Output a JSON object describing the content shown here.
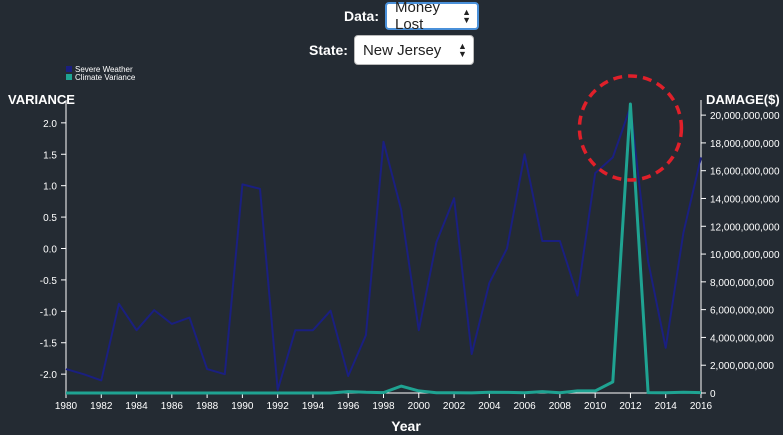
{
  "controls": {
    "data_label": "Data:",
    "data_value": "Money Lost",
    "state_label": "State:",
    "state_value": "New Jersey"
  },
  "colors": {
    "background": "#242b33",
    "severe_weather": "#1a1f80",
    "climate_variance": "#1fa392",
    "highlight": "#e0202a"
  },
  "chart_data": {
    "type": "line",
    "xlabel": "Year",
    "ylabel_left": "VARIANCE",
    "ylabel_right": "DAMAGE($)",
    "x_ticks": [
      "1980",
      "1982",
      "1984",
      "1986",
      "1988",
      "1990",
      "1992",
      "1994",
      "1996",
      "1998",
      "2000",
      "2002",
      "2004",
      "2006",
      "2008",
      "2010",
      "2012",
      "2014",
      "2016"
    ],
    "y_left_ticks": [
      "2.0",
      "1.5",
      "1.0",
      "0.5",
      "0.0",
      "-0.5",
      "-1.0",
      "-1.5",
      "-2.0"
    ],
    "y_right_ticks": [
      "20,000,000,000",
      "18,000,000,000",
      "16,000,000,000",
      "14,000,000,000",
      "12,000,000,000",
      "10,000,000,000",
      "8,000,000,000",
      "6,000,000,000",
      "4,000,000,000",
      "2,000,000,000",
      "0"
    ],
    "ylim_left": [
      -2.3,
      2.3
    ],
    "ylim_right": [
      0,
      20800000000
    ],
    "x": [
      1980,
      1981,
      1982,
      1983,
      1984,
      1985,
      1986,
      1987,
      1988,
      1989,
      1990,
      1991,
      1992,
      1993,
      1994,
      1995,
      1996,
      1997,
      1998,
      1999,
      2000,
      2001,
      2002,
      2003,
      2004,
      2005,
      2006,
      2007,
      2008,
      2009,
      2010,
      2011,
      2012,
      2013,
      2014,
      2015,
      2016
    ],
    "legend": {
      "position": "top-left"
    },
    "series": [
      {
        "name": "Severe Weather",
        "axis": "left",
        "values": [
          -1.92,
          -2.0,
          -2.1,
          -0.88,
          -1.3,
          -0.98,
          -1.2,
          -1.1,
          -1.92,
          -2.0,
          1.02,
          0.95,
          -2.25,
          -1.3,
          -1.3,
          -0.99,
          -2.03,
          -1.38,
          1.7,
          0.62,
          -1.3,
          0.1,
          0.8,
          -1.68,
          -0.55,
          0.0,
          1.5,
          0.12,
          0.12,
          -0.75,
          1.2,
          1.45,
          2.25,
          -0.2,
          -1.58,
          0.25,
          1.45
        ]
      },
      {
        "name": "Climate Variance",
        "axis": "right",
        "values": [
          0,
          0,
          0,
          0,
          0,
          0,
          0,
          0,
          0,
          0,
          0,
          0,
          0,
          0,
          0,
          0,
          100000000,
          50000000,
          30000000,
          500000000,
          150000000,
          20000000,
          20000000,
          10000000,
          60000000,
          40000000,
          20000000,
          100000000,
          20000000,
          150000000,
          150000000,
          800000000,
          20800000000,
          30000000,
          20000000,
          50000000,
          30000000
        ]
      }
    ],
    "annotations": [
      {
        "type": "dashed-circle",
        "year": 2012
      }
    ]
  }
}
